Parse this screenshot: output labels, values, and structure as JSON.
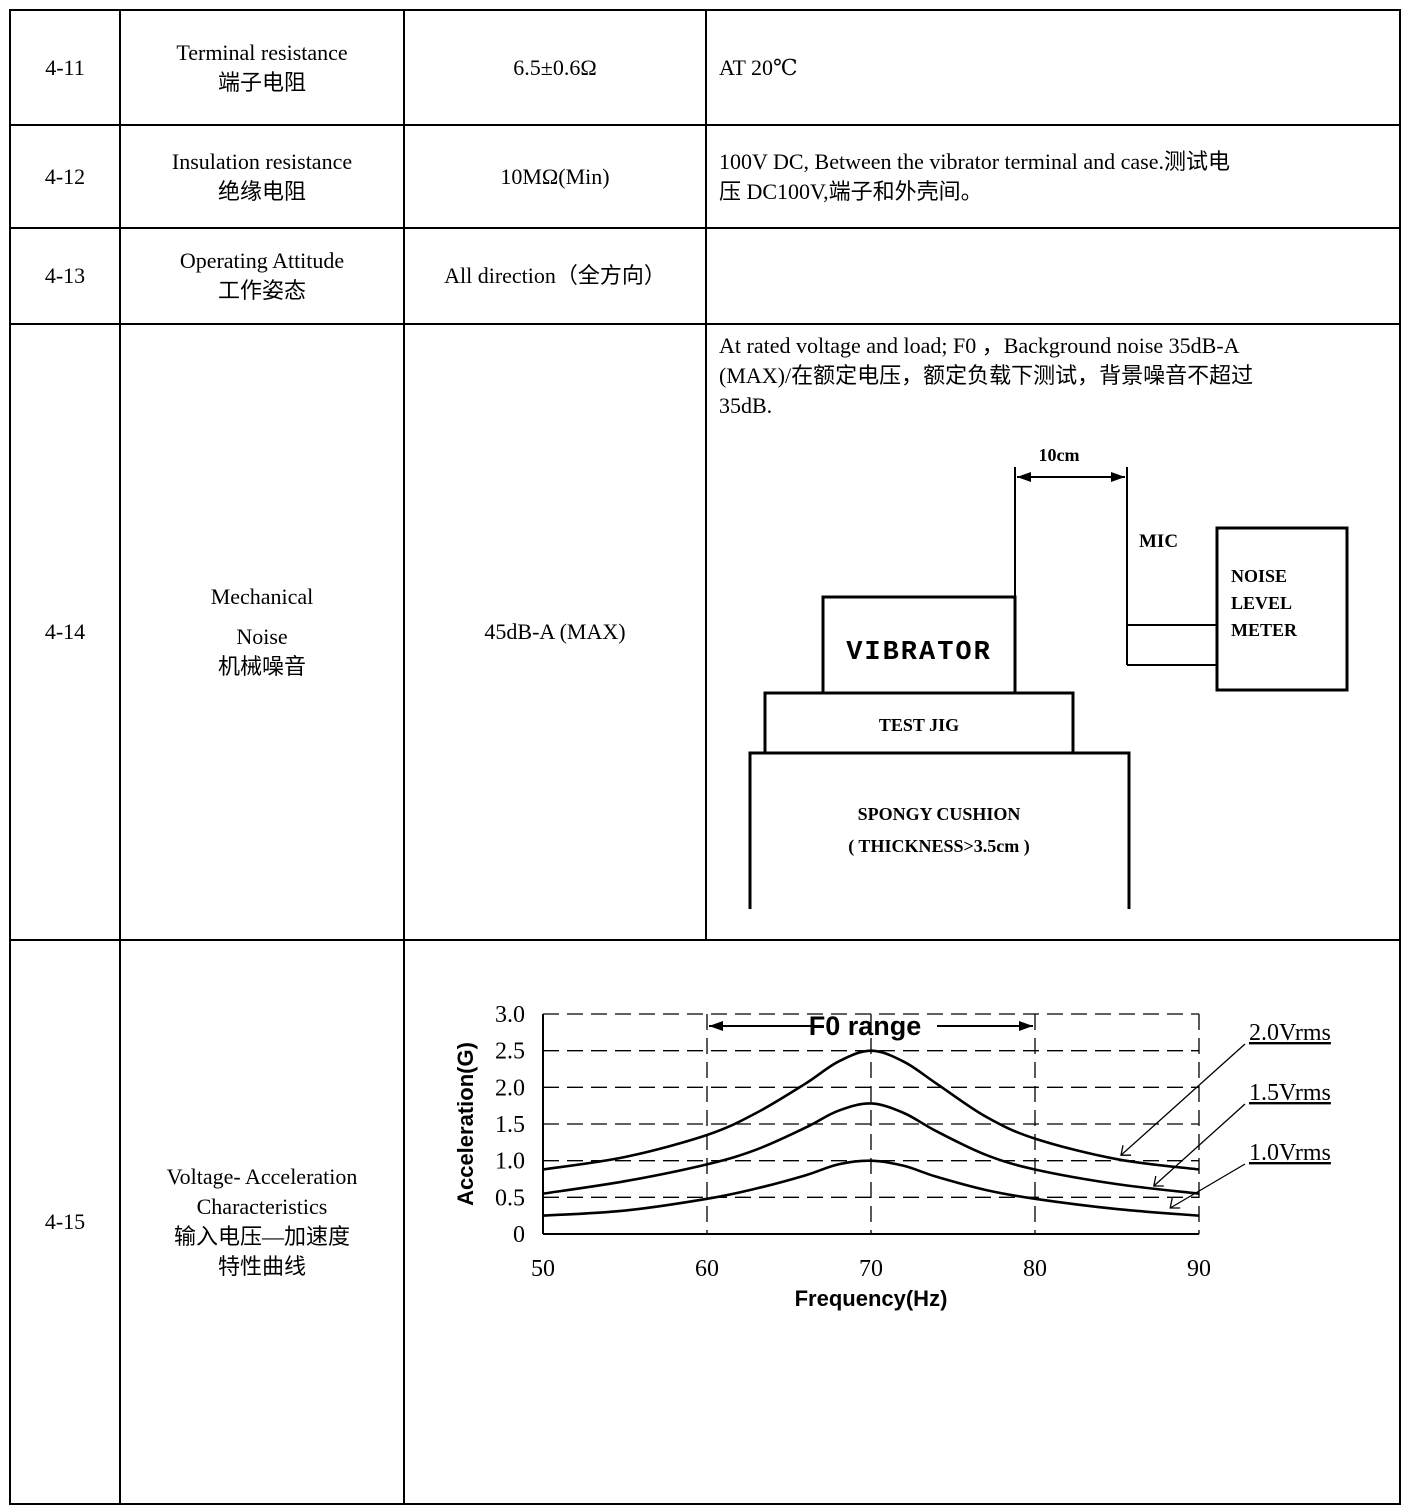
{
  "rows": [
    {
      "no": "4-11",
      "item_en": "Terminal resistance",
      "item_cn": "端子电阻",
      "value": "6.5±0.6Ω",
      "condition": "AT 20℃"
    },
    {
      "no": "4-12",
      "item_en": "Insulation resistance",
      "item_cn": "绝缘电阻",
      "value": "10MΩ(Min)",
      "condition_1": "100V DC, Between the vibrator terminal and case.测试电",
      "condition_2": "压 DC100V,端子和外壳间。"
    },
    {
      "no": "4-13",
      "item_en": "Operating Attitude",
      "item_cn": "工作姿态",
      "value": "All direction（全方向）",
      "condition": ""
    },
    {
      "no": "4-14",
      "item_en_1": "Mechanical",
      "item_en_2": "Noise",
      "item_cn": "机械噪音",
      "value": "45dB-A (MAX)",
      "condition_1": "At rated voltage and load; F0 ，Background noise 35dB-A",
      "condition_2": "(MAX)/在额定电压，额定负载下测试，背景噪音不超过",
      "condition_3": "35dB."
    },
    {
      "no": "4-15",
      "item_en_1": "Voltage- Acceleration",
      "item_en_2": "Characteristics",
      "item_cn_1": "输入电压—加速度",
      "item_cn_2": "特性曲线"
    }
  ],
  "noise_diagram": {
    "distance": "10cm",
    "mic": "MIC",
    "meter_1": "NOISE",
    "meter_2": "LEVEL",
    "meter_3": "METER",
    "vibrator": "VIBRATOR",
    "jig": "TEST JIG",
    "cushion_1": "SPONGY CUSHION",
    "cushion_2": "( THICKNESS>3.5cm )"
  },
  "chart_data": {
    "type": "line",
    "xlabel": "Frequency(Hz)",
    "ylabel": "Acceleration(G)",
    "xlim": [
      50,
      90
    ],
    "ylim": [
      0,
      3.0
    ],
    "x_ticks": [
      "50",
      "60",
      "70",
      "80",
      "90"
    ],
    "y_ticks": [
      "0",
      "0.5",
      "1.0",
      "1.5",
      "2.0",
      "2.5",
      "3.0"
    ],
    "grid": true,
    "annotation": "F0 range",
    "f0_range": [
      60,
      80
    ],
    "x": [
      50,
      55,
      60,
      63,
      66,
      68,
      70,
      72,
      74,
      77,
      80,
      85,
      90
    ],
    "series": [
      {
        "name": "2.0Vrms",
        "values": [
          0.88,
          1.05,
          1.35,
          1.65,
          2.05,
          2.35,
          2.5,
          2.35,
          2.05,
          1.6,
          1.3,
          1.02,
          0.88
        ]
      },
      {
        "name": "1.5Vrms",
        "values": [
          0.55,
          0.72,
          0.95,
          1.15,
          1.45,
          1.68,
          1.78,
          1.65,
          1.4,
          1.08,
          0.88,
          0.68,
          0.55
        ]
      },
      {
        "name": "1.0Vrms",
        "values": [
          0.25,
          0.32,
          0.48,
          0.62,
          0.8,
          0.95,
          1.0,
          0.93,
          0.78,
          0.6,
          0.48,
          0.34,
          0.25
        ]
      }
    ]
  }
}
